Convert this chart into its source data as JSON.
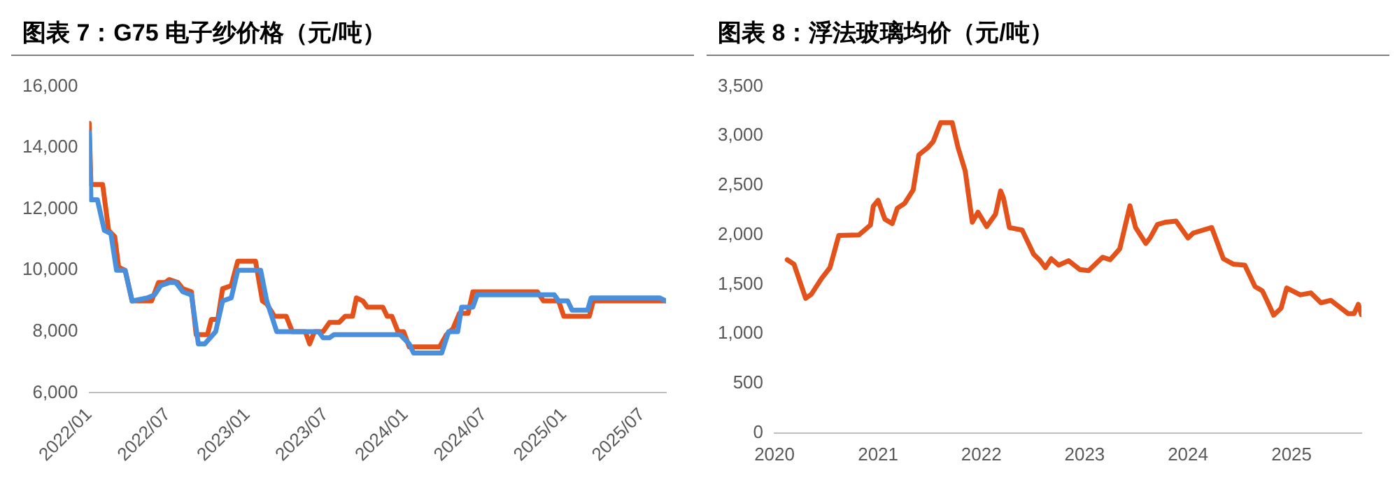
{
  "chart_data": [
    {
      "type": "line",
      "title": "图表 7：G75 电子纱价格（元/吨）",
      "legend": false,
      "grid": false,
      "marker": "none",
      "xlim": [
        "2022-01-01",
        "2025-08-25"
      ],
      "xticks": [
        {
          "value": "2022-01",
          "label": "2022/01"
        },
        {
          "value": "2022-07",
          "label": "2022/07"
        },
        {
          "value": "2023-01",
          "label": "2023/01"
        },
        {
          "value": "2023-07",
          "label": "2023/07"
        },
        {
          "value": "2024-01",
          "label": "2024/01"
        },
        {
          "value": "2024-07",
          "label": "2024/07"
        },
        {
          "value": "2025-01",
          "label": "2025/01"
        },
        {
          "value": "2025-07",
          "label": "2025/07"
        }
      ],
      "ylim": [
        6000,
        16000
      ],
      "yticks": [
        {
          "value": 6000,
          "label": "6,000"
        },
        {
          "value": 8000,
          "label": "8,000"
        },
        {
          "value": 10000,
          "label": "10,000"
        },
        {
          "value": 12000,
          "label": "12,000"
        },
        {
          "value": 14000,
          "label": "14,000"
        },
        {
          "value": 16000,
          "label": "16,000"
        }
      ],
      "series": [
        {
          "color": "#4a8fdb",
          "x": [
            "2022-01-01",
            "2022-01-05",
            "2022-01-20",
            "2022-02-05",
            "2022-02-20",
            "2022-03-05",
            "2022-03-25",
            "2022-04-10",
            "2022-05-15",
            "2022-06-01",
            "2022-06-15",
            "2022-07-05",
            "2022-07-20",
            "2022-08-05",
            "2022-08-25",
            "2022-09-10",
            "2022-09-25",
            "2022-10-20",
            "2022-11-05",
            "2022-11-25",
            "2022-12-10",
            "2023-02-01",
            "2023-02-15",
            "2023-03-10",
            "2023-06-15",
            "2023-06-25",
            "2023-07-10",
            "2023-07-20",
            "2023-12-20",
            "2024-01-10",
            "2024-01-20",
            "2024-03-25",
            "2024-04-10",
            "2024-05-01",
            "2024-05-10",
            "2024-06-05",
            "2024-06-15",
            "2024-12-10",
            "2024-12-20",
            "2025-01-10",
            "2025-01-20",
            "2025-02-25",
            "2025-03-05",
            "2025-08-10",
            "2025-08-25"
          ],
          "values": [
            14500,
            12300,
            12300,
            11300,
            11200,
            10000,
            10000,
            9000,
            9100,
            9200,
            9500,
            9600,
            9600,
            9300,
            9200,
            7600,
            7600,
            8000,
            9000,
            9100,
            10000,
            10000,
            9000,
            8000,
            8000,
            7800,
            7800,
            7900,
            7900,
            7600,
            7300,
            7300,
            8000,
            8000,
            8800,
            8800,
            9200,
            9200,
            9000,
            9000,
            8700,
            8700,
            9100,
            9100,
            9000
          ]
        },
        {
          "color": "#e4521b",
          "x": [
            "2022-01-01",
            "2022-01-05",
            "2022-02-01",
            "2022-02-15",
            "2022-03-01",
            "2022-03-10",
            "2022-03-25",
            "2022-04-10",
            "2022-05-25",
            "2022-06-10",
            "2022-06-25",
            "2022-07-05",
            "2022-07-25",
            "2022-08-05",
            "2022-08-25",
            "2022-09-05",
            "2022-10-01",
            "2022-10-10",
            "2022-10-25",
            "2022-11-05",
            "2022-11-25",
            "2022-12-10",
            "2023-01-20",
            "2023-02-05",
            "2023-02-15",
            "2023-03-05",
            "2023-04-01",
            "2023-04-15",
            "2023-05-15",
            "2023-05-25",
            "2023-06-05",
            "2023-06-25",
            "2023-07-10",
            "2023-08-01",
            "2023-08-15",
            "2023-09-01",
            "2023-09-10",
            "2023-09-25",
            "2023-10-05",
            "2023-11-10",
            "2023-11-20",
            "2023-12-01",
            "2023-12-15",
            "2023-12-28",
            "2024-01-10",
            "2024-03-20",
            "2024-04-05",
            "2024-04-20",
            "2024-05-05",
            "2024-05-25",
            "2024-06-05",
            "2024-11-01",
            "2024-11-15",
            "2024-12-20",
            "2025-01-01",
            "2025-03-01",
            "2025-03-10",
            "2025-08-25"
          ],
          "values": [
            14800,
            12800,
            12800,
            11300,
            11100,
            10100,
            10000,
            9000,
            9000,
            9600,
            9600,
            9700,
            9600,
            9400,
            9300,
            7900,
            7900,
            8400,
            8400,
            9400,
            9500,
            10300,
            10300,
            9000,
            8900,
            8500,
            8500,
            8000,
            8000,
            7600,
            8000,
            8000,
            8300,
            8300,
            8500,
            8500,
            9100,
            9000,
            8800,
            8800,
            8500,
            8500,
            8000,
            8000,
            7500,
            7500,
            7900,
            8100,
            8600,
            8600,
            9300,
            9300,
            9000,
            9000,
            8500,
            8500,
            9000,
            9000
          ]
        }
      ]
    },
    {
      "type": "line",
      "title": "图表 8：浮法玻璃均价（元/吨）",
      "legend": false,
      "grid": false,
      "marker": "none",
      "xlim": [
        "2020-01-01",
        "2025-09-05"
      ],
      "xticks": [
        {
          "value": "2020-01",
          "label": "2020"
        },
        {
          "value": "2021-01",
          "label": "2021"
        },
        {
          "value": "2022-01",
          "label": "2022"
        },
        {
          "value": "2023-01",
          "label": "2023"
        },
        {
          "value": "2024-01",
          "label": "2024"
        },
        {
          "value": "2025-01",
          "label": "2025"
        }
      ],
      "ylim": [
        0,
        3500
      ],
      "yticks": [
        0,
        500,
        {
          "value": 1000,
          "label": "1,000"
        },
        {
          "value": 1500,
          "label": "1,500"
        },
        {
          "value": 2000,
          "label": "2,000"
        },
        {
          "value": 2500,
          "label": "2,500"
        },
        {
          "value": 3000,
          "label": "3,000"
        },
        {
          "value": 3500,
          "label": "3,500"
        }
      ],
      "series": [
        {
          "color": "#e4521b",
          "x": [
            "2020-02-15",
            "2020-03-10",
            "2020-04-20",
            "2020-05-10",
            "2020-06-15",
            "2020-07-15",
            "2020-08-15",
            "2020-10-25",
            "2020-12-05",
            "2020-12-15",
            "2021-01-01",
            "2021-01-25",
            "2021-02-20",
            "2021-03-10",
            "2021-04-05",
            "2021-05-05",
            "2021-05-25",
            "2021-06-25",
            "2021-07-15",
            "2021-08-10",
            "2021-09-20",
            "2021-10-10",
            "2021-11-05",
            "2021-11-30",
            "2021-12-20",
            "2022-01-20",
            "2022-02-20",
            "2022-03-10",
            "2022-03-20",
            "2022-04-10",
            "2022-05-25",
            "2022-07-05",
            "2022-07-25",
            "2022-08-15",
            "2022-09-05",
            "2022-10-01",
            "2022-11-05",
            "2022-12-15",
            "2023-01-15",
            "2023-03-05",
            "2023-04-01",
            "2023-05-05",
            "2023-06-10",
            "2023-06-30",
            "2023-08-05",
            "2023-08-20",
            "2023-09-15",
            "2023-10-15",
            "2023-11-20",
            "2024-01-01",
            "2024-01-20",
            "2024-03-25",
            "2024-05-05",
            "2024-06-10",
            "2024-07-20",
            "2024-08-25",
            "2024-09-20",
            "2024-10-10",
            "2024-10-30",
            "2024-11-25",
            "2024-12-15",
            "2025-02-01",
            "2025-03-10",
            "2025-04-15",
            "2025-05-20",
            "2025-07-20",
            "2025-08-10",
            "2025-08-25",
            "2025-09-05"
          ],
          "values": [
            1750,
            1705,
            1360,
            1400,
            1560,
            1670,
            1995,
            2000,
            2100,
            2290,
            2350,
            2160,
            2115,
            2270,
            2320,
            2455,
            2810,
            2880,
            2945,
            3135,
            3135,
            2890,
            2645,
            2130,
            2230,
            2085,
            2210,
            2445,
            2375,
            2075,
            2050,
            1805,
            1750,
            1670,
            1760,
            1695,
            1740,
            1650,
            1640,
            1775,
            1750,
            1860,
            2295,
            2075,
            1915,
            1970,
            2105,
            2130,
            2140,
            1970,
            2020,
            2075,
            1760,
            1705,
            1695,
            1480,
            1435,
            1315,
            1190,
            1260,
            1465,
            1395,
            1415,
            1315,
            1340,
            1205,
            1205,
            1300,
            1195
          ]
        }
      ]
    }
  ]
}
